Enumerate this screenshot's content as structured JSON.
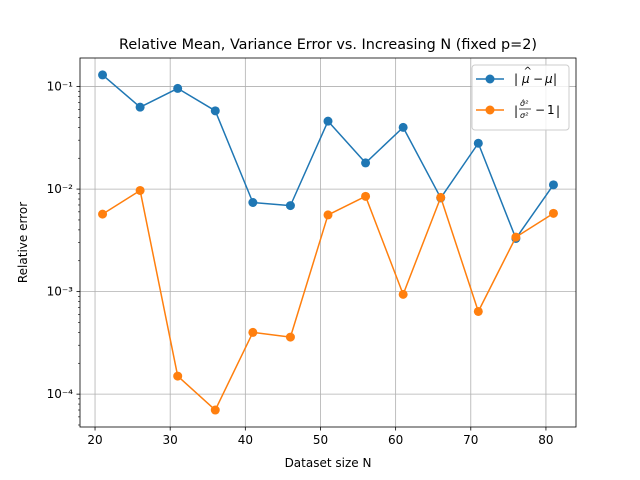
{
  "chart_data": {
    "type": "line",
    "title": "Relative Mean, Variance Error vs. Increasing N (fixed p=2)",
    "xlabel": "Dataset size N",
    "ylabel": "Relative error",
    "xlim": [
      18,
      84
    ],
    "ylim": [
      4.78e-05,
      0.19
    ],
    "yscale": "log",
    "grid": true,
    "legend_position": "top-right",
    "xticks": [
      20,
      30,
      40,
      50,
      60,
      70,
      80
    ],
    "yticks": [
      {
        "value": 0.0001,
        "label": "10⁻⁴"
      },
      {
        "value": 0.001,
        "label": "10⁻³"
      },
      {
        "value": 0.01,
        "label": "10⁻²"
      },
      {
        "value": 0.1,
        "label": "10⁻¹"
      }
    ],
    "x": [
      21,
      26,
      31,
      36,
      41,
      46,
      51,
      56,
      61,
      66,
      71,
      76,
      81
    ],
    "series": [
      {
        "name": "|μ̂ − μ|",
        "color": "#1f77b4",
        "values": [
          0.13,
          0.063,
          0.096,
          0.058,
          0.0074,
          0.0069,
          0.046,
          0.018,
          0.04,
          0.0082,
          0.028,
          0.0033,
          0.011
        ]
      },
      {
        "name": "|σ̂²/σ² − 1|",
        "color": "#ff7f0e",
        "values": [
          0.0057,
          0.0097,
          0.00015,
          7e-05,
          0.0004,
          0.00036,
          0.0056,
          0.0085,
          0.00094,
          0.0083,
          0.00064,
          0.0034,
          0.0058
        ]
      }
    ]
  }
}
